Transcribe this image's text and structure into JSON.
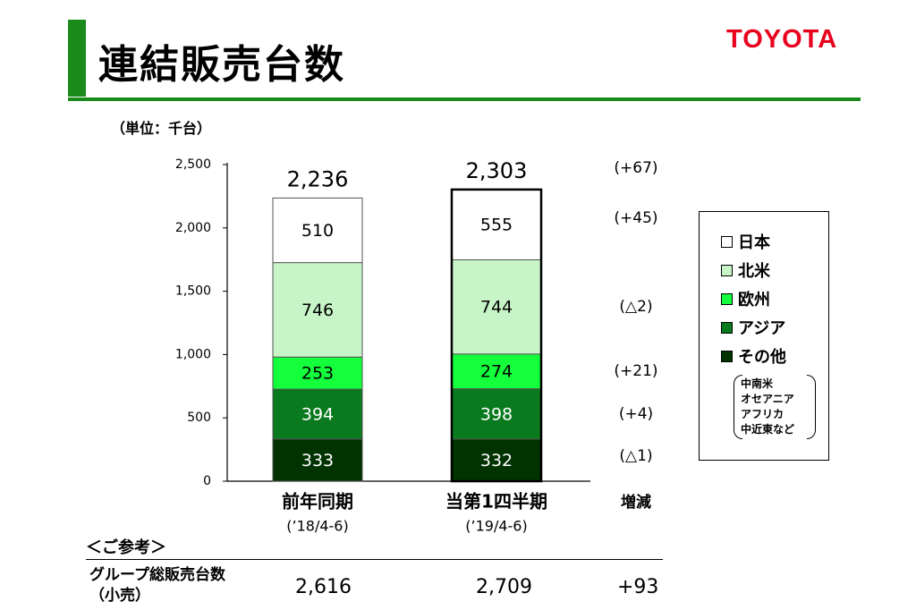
{
  "header": {
    "title": "連結販売台数",
    "logo": "TOYOTA",
    "unit": "（単位：千台）"
  },
  "colors": {
    "accent": "#1a8a1a",
    "logo": "#e8001c"
  },
  "chart_data": {
    "type": "bar",
    "stacked": true,
    "categories": [
      "前年同期",
      "当第1四半期"
    ],
    "category_sublabels": [
      "(’18/4-6)",
      "(’19/4-6)"
    ],
    "ylim": [
      0,
      2500
    ],
    "yticks": [
      0,
      500,
      1000,
      1500,
      2000,
      2500
    ],
    "ytick_labels": [
      "0",
      "500",
      "1,000",
      "1,500",
      "2,000",
      "2,500"
    ],
    "series": [
      {
        "name": "その他",
        "values": [
          333,
          332
        ],
        "labels": [
          "333",
          "332"
        ],
        "color": "#003300",
        "text_color": "#ffffff"
      },
      {
        "name": "アジア",
        "values": [
          394,
          398
        ],
        "labels": [
          "394",
          "398"
        ],
        "color": "#0a7a1e",
        "text_color": "#ffffff"
      },
      {
        "name": "欧州",
        "values": [
          253,
          274
        ],
        "labels": [
          "253",
          "274"
        ],
        "color": "#14ff3c",
        "text_color": "#000000"
      },
      {
        "name": "北米",
        "values": [
          746,
          744
        ],
        "labels": [
          "746",
          "744"
        ],
        "color": "#c8f5c8",
        "text_color": "#000000"
      },
      {
        "name": "日本",
        "values": [
          510,
          555
        ],
        "labels": [
          "510",
          "555"
        ],
        "color": "#ffffff",
        "text_color": "#000000"
      }
    ],
    "totals": [
      "2,236",
      "2,303"
    ],
    "change_header": "増減",
    "changes": [
      "(△1)",
      "(+4)",
      "(+21)",
      "(△2)",
      "(+45)"
    ],
    "total_change": "(+67)"
  },
  "legend": {
    "items": [
      {
        "label": "日本",
        "color": "#ffffff"
      },
      {
        "label": "北米",
        "color": "#c8f5c8"
      },
      {
        "label": "欧州",
        "color": "#14ff3c"
      },
      {
        "label": "アジア",
        "color": "#0a7a1e"
      },
      {
        "label": "その他",
        "color": "#003300"
      }
    ],
    "note": "中南米\nオセアニア\nアフリカ\n中近東など"
  },
  "reference": {
    "title": "＜ご参考＞",
    "label": "グループ総販売台数\n（小売）",
    "prev": "2,616",
    "curr": "2,709",
    "change": "+93"
  }
}
